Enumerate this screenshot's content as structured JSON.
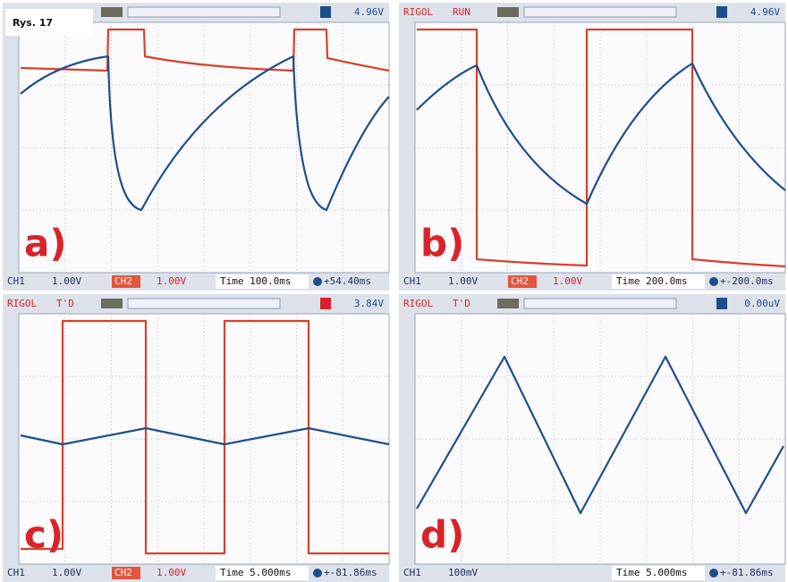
{
  "figure_label": "Rys. 17",
  "panels": [
    {
      "label": "a)",
      "top": {
        "trigger": "4.96V"
      },
      "bottom": {
        "ch1": "CH1",
        "ch1_scale": "1.00V",
        "ch2": "CH2",
        "ch2_scale": "1.00V",
        "time": "Time 100.0ms",
        "offset": "+54.40ms"
      }
    },
    {
      "label": "b)",
      "top": {
        "brand": "RIGOL",
        "mode": "RUN",
        "trigger": "4.96V"
      },
      "bottom": {
        "ch1": "CH1",
        "ch1_scale": "1.00V",
        "ch2": "CH2",
        "ch2_scale": "1.00V",
        "time": "Time 200.0ms",
        "offset": "+-200.0ms"
      }
    },
    {
      "label": "c)",
      "top": {
        "brand": "RIGOL",
        "mode": "T'D",
        "trigger": "3.84V"
      },
      "bottom": {
        "ch1": "CH1",
        "ch1_scale": "1.00V",
        "ch2": "CH2",
        "ch2_scale": "1.00V",
        "time": "Time 5.000ms",
        "offset": "+-81.86ms"
      }
    },
    {
      "label": "d)",
      "top": {
        "brand": "RIGOL",
        "mode": "T'D",
        "trigger": "0.00uV"
      },
      "bottom": {
        "ch1": "CH1",
        "ch1_scale": "100mV",
        "time": "Time 5.000ms",
        "offset": "+-81.86ms"
      }
    }
  ]
}
